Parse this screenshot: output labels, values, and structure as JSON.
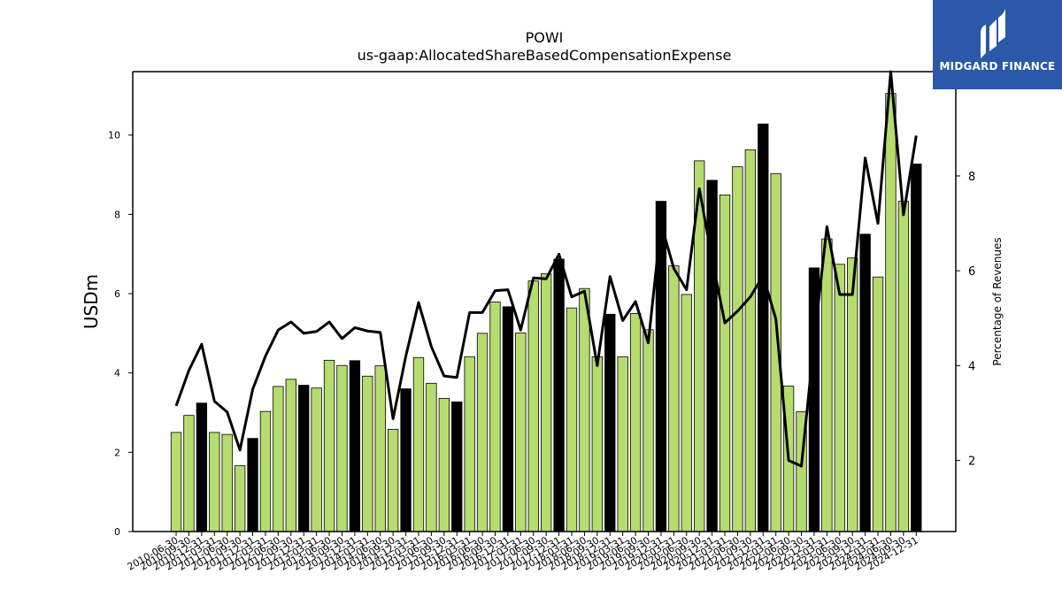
{
  "logo": {
    "text": "MIDGARD FINANCE"
  },
  "chart_data": {
    "type": "bar",
    "title": "POWI",
    "subtitle": "us-gaap:AllocatedShareBasedCompensationExpense",
    "ylabel": "USDm",
    "y2label": "Percentage of Revenues",
    "ylim": [
      0,
      11.6
    ],
    "y2lim": [
      0.5,
      10.2
    ],
    "yticks": [
      0,
      2,
      4,
      6,
      8,
      10
    ],
    "y2ticks": [
      2,
      4,
      6,
      8
    ],
    "grid": false,
    "colors": {
      "quarter_bar": "#b5dc6e",
      "annual_bar": "#000000",
      "line": "#000000"
    },
    "categories": [
      "2010-06-30",
      "2010-09-30",
      "2010-12-31",
      "2011-03-31",
      "2011-06-30",
      "2011-09-30",
      "2011-12-31",
      "2012-03-31",
      "2012-06-30",
      "2012-09-30",
      "2012-12-31",
      "2013-03-31",
      "2013-06-30",
      "2013-09-30",
      "2013-12-31",
      "2014-03-31",
      "2014-06-30",
      "2014-09-30",
      "2014-12-31",
      "2015-03-31",
      "2015-06-30",
      "2015-09-30",
      "2015-12-31",
      "2016-03-31",
      "2016-06-30",
      "2016-09-30",
      "2016-12-31",
      "2017-03-31",
      "2017-06-30",
      "2017-09-30",
      "2017-12-31",
      "2018-03-31",
      "2018-06-30",
      "2018-09-30",
      "2018-12-31",
      "2019-03-31",
      "2019-06-30",
      "2019-09-30",
      "2019-12-31",
      "2020-03-31",
      "2020-06-30",
      "2020-09-30",
      "2020-12-31",
      "2021-03-31",
      "2021-06-30",
      "2021-09-30",
      "2021-12-31",
      "2022-03-31",
      "2022-06-30",
      "2022-09-30",
      "2022-12-31",
      "2023-03-31",
      "2023-06-30",
      "2023-09-30",
      "2023-12-31",
      "2024-03-31",
      "2024-06-30",
      "2024-09-30",
      "2024-12-31"
    ],
    "series": [
      {
        "type": "bar",
        "values": [
          2.5,
          2.93,
          3.24,
          2.5,
          2.45,
          1.66,
          2.35,
          3.03,
          3.66,
          3.84,
          3.69,
          3.62,
          4.32,
          4.19,
          4.31,
          3.92,
          4.18,
          2.58,
          3.6,
          4.39,
          3.74,
          3.36,
          3.27,
          4.41,
          5.0,
          5.79,
          5.67,
          5.01,
          6.32,
          6.5,
          6.87,
          5.64,
          6.13,
          4.41,
          5.48,
          4.41,
          5.5,
          5.09,
          8.33,
          6.7,
          5.98,
          9.35,
          8.86,
          8.49,
          9.2,
          9.63,
          10.28,
          9.03,
          3.67,
          3.02,
          6.65,
          7.38,
          6.74,
          6.9,
          7.5,
          6.42,
          11.05,
          8.33,
          9.27
        ],
        "annual": [
          false,
          false,
          true,
          false,
          false,
          false,
          true,
          false,
          false,
          false,
          true,
          false,
          false,
          false,
          true,
          false,
          false,
          false,
          true,
          false,
          false,
          false,
          true,
          false,
          false,
          false,
          true,
          false,
          false,
          false,
          true,
          false,
          false,
          false,
          true,
          false,
          false,
          false,
          true,
          false,
          false,
          false,
          true,
          false,
          false,
          false,
          true,
          false,
          false,
          false,
          true,
          false,
          false,
          false,
          true,
          false,
          false,
          false,
          true
        ]
      },
      {
        "type": "line",
        "axis": "right",
        "values": [
          3.15,
          3.9,
          4.45,
          3.25,
          3.02,
          2.22,
          3.5,
          4.2,
          4.75,
          4.92,
          4.68,
          4.72,
          4.92,
          4.57,
          4.8,
          4.73,
          4.7,
          2.88,
          4.2,
          5.33,
          4.4,
          3.78,
          3.75,
          5.12,
          5.12,
          5.58,
          5.6,
          4.75,
          5.85,
          5.83,
          6.35,
          5.45,
          5.57,
          4.0,
          5.88,
          4.95,
          5.35,
          4.48,
          7.0,
          6.05,
          5.6,
          7.73,
          6.25,
          4.9,
          5.15,
          5.45,
          5.9,
          4.98,
          2.0,
          1.88,
          4.52,
          6.93,
          5.5,
          5.5,
          8.38,
          7.0,
          10.2,
          7.18,
          8.85
        ]
      }
    ]
  }
}
